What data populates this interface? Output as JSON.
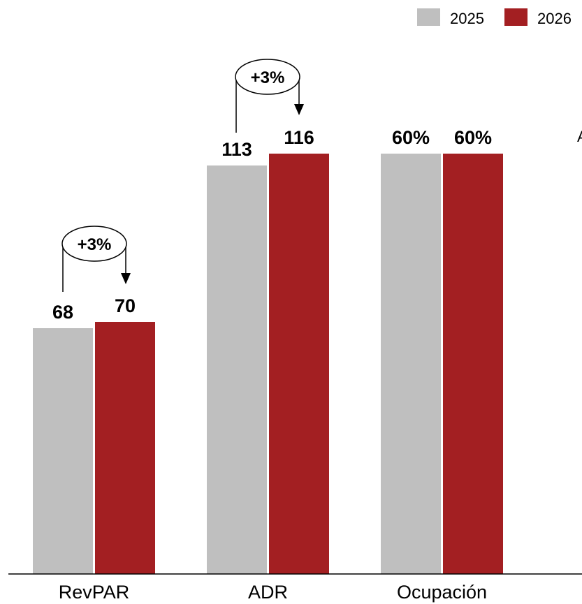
{
  "chart_data": {
    "type": "bar",
    "categories": [
      "RevPAR",
      "ADR",
      "Ocupación"
    ],
    "series": [
      {
        "name": "2025",
        "values": [
          68,
          113,
          60
        ],
        "labels": [
          "68",
          "113",
          "60%"
        ],
        "color": "#bfbfbf"
      },
      {
        "name": "2026",
        "values": [
          70,
          116,
          60
        ],
        "labels": [
          "70",
          "116",
          "60%"
        ],
        "color": "#a31f22"
      }
    ],
    "annotations": [
      {
        "category": "RevPAR",
        "text": "+3%"
      },
      {
        "category": "ADR",
        "text": "+3%"
      }
    ],
    "legend": "top-right",
    "grid": false,
    "clipped_text": "A"
  }
}
